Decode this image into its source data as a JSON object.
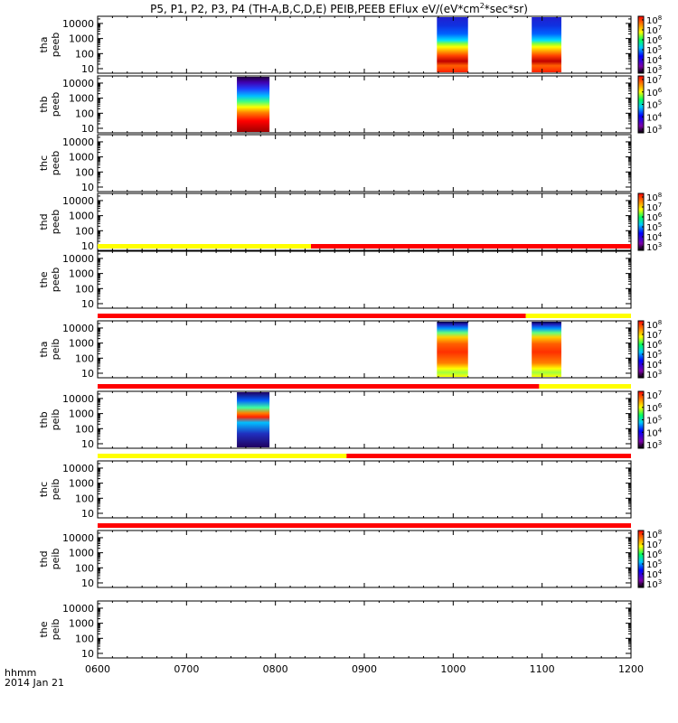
{
  "title": "P5, P1, P2, P3, P4 (TH-A,B,C,D,E) PEIB,PEEB EFlux eV/(eV*cm",
  "title_sup": "2",
  "title_tail": "*sec*sr)",
  "footer": {
    "time_label": "hhmm",
    "date_label": "2014 Jan 21"
  },
  "colors": {
    "bar_yellow": "#ffff00",
    "bar_red": "#ff0000",
    "frame": "#000000"
  },
  "chart_data": {
    "type": "heatmap",
    "x_axis": {
      "label": "hhmm",
      "range": [
        "0600",
        "1200"
      ],
      "ticks": [
        "0600",
        "0700",
        "0800",
        "0900",
        "1000",
        "1100",
        "1200"
      ]
    },
    "y_axis": {
      "scale": "log",
      "ticks": [
        "10",
        "100",
        "1000",
        "10000"
      ]
    },
    "panels": [
      {
        "label": [
          "tha",
          "peeb"
        ],
        "colorbar": [
          "10",
          "10",
          "10",
          "10",
          "10",
          "10"
        ],
        "colorbar_exp": [
          "3",
          "4",
          "5",
          "6",
          "7",
          "8"
        ],
        "spectra": [
          {
            "kind": "tha-e",
            "t_start": "0949",
            "t_end": "1010"
          },
          {
            "kind": "tha-e",
            "t_start": "1053",
            "t_end": "1113"
          }
        ],
        "status_bar": []
      },
      {
        "label": [
          "thb",
          "peeb"
        ],
        "colorbar": [
          "10",
          "10",
          "10",
          "10",
          "10"
        ],
        "colorbar_exp": [
          "3",
          "4",
          "5",
          "6",
          "7"
        ],
        "spectra": [
          {
            "kind": "thb-e",
            "t_start": "0734",
            "t_end": "0756"
          }
        ],
        "status_bar": []
      },
      {
        "label": [
          "thc",
          "peeb"
        ],
        "colorbar": [],
        "colorbar_exp": [],
        "spectra": [],
        "status_bar": []
      },
      {
        "label": [
          "thd",
          "peeb"
        ],
        "colorbar": [
          "10",
          "10",
          "10",
          "10",
          "10",
          "10"
        ],
        "colorbar_exp": [
          "3",
          "4",
          "5",
          "6",
          "7",
          "8"
        ],
        "spectra": [],
        "status_bar": []
      },
      {
        "label": [
          "the",
          "peeb"
        ],
        "colorbar": [],
        "colorbar_exp": [],
        "spectra": [],
        "status_bar": [
          {
            "color": "yellow",
            "t_start": "0600",
            "t_end": "0824"
          },
          {
            "color": "red",
            "t_start": "0824",
            "t_end": "1200"
          }
        ]
      },
      {
        "label": [
          "tha",
          "peib"
        ],
        "colorbar": [
          "10",
          "10",
          "10",
          "10",
          "10",
          "10"
        ],
        "colorbar_exp": [
          "3",
          "4",
          "5",
          "6",
          "7",
          "8"
        ],
        "spectra": [
          {
            "kind": "tha-i",
            "t_start": "0949",
            "t_end": "1010"
          },
          {
            "kind": "tha-i",
            "t_start": "1053",
            "t_end": "1113"
          }
        ],
        "status_bar": [
          {
            "color": "red",
            "t_start": "0600",
            "t_end": "1049"
          },
          {
            "color": "yellow",
            "t_start": "1049",
            "t_end": "1200"
          }
        ]
      },
      {
        "label": [
          "thb",
          "peib"
        ],
        "colorbar": [
          "10",
          "10",
          "10",
          "10",
          "10"
        ],
        "colorbar_exp": [
          "3",
          "4",
          "5",
          "6",
          "7"
        ],
        "spectra": [
          {
            "kind": "thb-i",
            "t_start": "0734",
            "t_end": "0756"
          }
        ],
        "status_bar": [
          {
            "color": "red",
            "t_start": "0600",
            "t_end": "1058"
          },
          {
            "color": "yellow",
            "t_start": "1058",
            "t_end": "1200"
          }
        ]
      },
      {
        "label": [
          "thc",
          "peib"
        ],
        "colorbar": [],
        "colorbar_exp": [],
        "spectra": [],
        "status_bar": [
          {
            "color": "yellow",
            "t_start": "0600",
            "t_end": "0848"
          },
          {
            "color": "red",
            "t_start": "0848",
            "t_end": "1200"
          }
        ]
      },
      {
        "label": [
          "thd",
          "peib"
        ],
        "colorbar": [
          "10",
          "10",
          "10",
          "10",
          "10",
          "10"
        ],
        "colorbar_exp": [
          "3",
          "4",
          "5",
          "6",
          "7",
          "8"
        ],
        "spectra": [],
        "status_bar": [
          {
            "color": "red",
            "t_start": "0600",
            "t_end": "1200"
          }
        ]
      },
      {
        "label": [
          "the",
          "peib"
        ],
        "colorbar": [],
        "colorbar_exp": [],
        "spectra": [],
        "status_bar": []
      }
    ]
  }
}
